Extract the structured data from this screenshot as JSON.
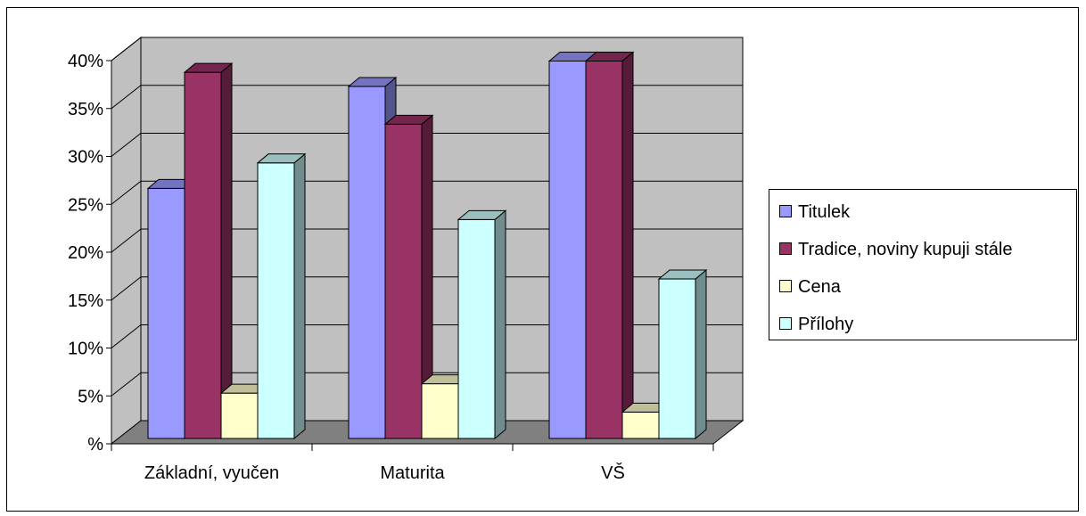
{
  "chart_data": {
    "type": "bar",
    "three_d": true,
    "categories": [
      "Základní, vyučen",
      "Maturita",
      "VŠ"
    ],
    "y_ticks": [
      "%",
      "5%",
      "10%",
      "15%",
      "20%",
      "25%",
      "30%",
      "35%",
      "40%"
    ],
    "ylim": [
      0,
      40
    ],
    "grid": true,
    "legend_position": "right",
    "series": [
      {
        "name": "Titulek",
        "values": [
          26.5,
          37.3,
          40
        ],
        "color": "#9999FF"
      },
      {
        "name": "Tradice, noviny kupuji stále",
        "values": [
          38.8,
          33.3,
          40
        ],
        "color": "#993366"
      },
      {
        "name": "Cena",
        "values": [
          4.8,
          5.8,
          2.8
        ],
        "color": "#FFFFCC"
      },
      {
        "name": "Přílohy",
        "values": [
          29.2,
          23.2,
          16.9
        ],
        "color": "#CCFFFF"
      }
    ],
    "colors": {
      "plot_wall": "#C0C0C0",
      "plot_floor": "#808080",
      "gridline": "#000000"
    }
  }
}
